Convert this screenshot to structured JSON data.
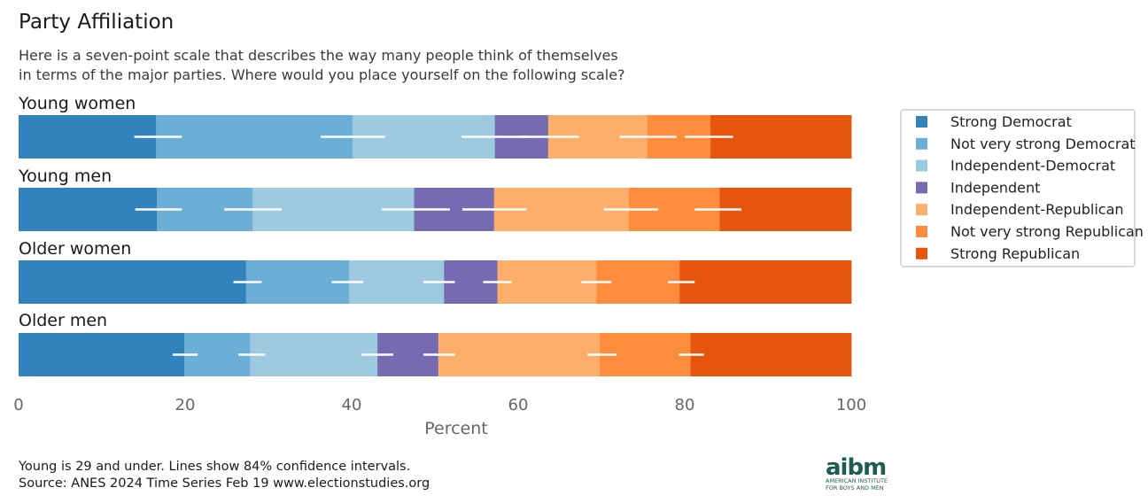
{
  "chart_data": {
    "type": "bar",
    "orientation": "horizontal-stacked",
    "title": "Party Affiliation",
    "subtitle": [
      "Here is a seven-point scale that describes the way many people think of themselves",
      "in terms of the major parties.  Where would you place yourself on the following scale?"
    ],
    "xlabel": "Percent",
    "xlim": [
      0,
      100
    ],
    "xticks": [
      0,
      20,
      40,
      60,
      80,
      100
    ],
    "legend_position": "right",
    "series_names": [
      "Strong Democrat",
      "Not very strong Democrat",
      "Independent-Democrat",
      "Independent",
      "Independent-Republican",
      "Not very strong Republican",
      "Strong Republican"
    ],
    "colors": [
      "#3182bd",
      "#6baed6",
      "#9ecae1",
      "#756bb1",
      "#fdae6b",
      "#fd8d3c",
      "#e6550d"
    ],
    "groups": [
      {
        "label": "Young women",
        "values": [
          16.5,
          23.6,
          17.1,
          6.4,
          11.9,
          7.6,
          16.9
        ],
        "ci": [
          [
            13.9,
            19.6
          ],
          [
            36.3,
            44.0
          ],
          [
            53.2,
            61.0
          ],
          [
            60.2,
            67.3
          ],
          [
            72.2,
            79.0
          ],
          [
            80.0,
            85.8
          ]
        ]
      },
      {
        "label": "Young men",
        "values": [
          16.6,
          11.5,
          19.4,
          9.6,
          16.2,
          10.9,
          15.8
        ],
        "ci": [
          [
            14.0,
            19.6
          ],
          [
            24.7,
            31.6
          ],
          [
            43.6,
            51.8
          ],
          [
            53.3,
            61.0
          ],
          [
            70.3,
            76.8
          ],
          [
            81.2,
            86.8
          ]
        ]
      },
      {
        "label": "Older women",
        "values": [
          27.3,
          12.4,
          11.4,
          6.4,
          11.9,
          10.0,
          20.6
        ],
        "ci": [
          [
            25.8,
            29.2
          ],
          [
            37.6,
            41.4
          ],
          [
            48.6,
            52.4
          ],
          [
            55.8,
            59.2
          ],
          [
            67.6,
            71.2
          ],
          [
            78.0,
            81.2
          ]
        ]
      },
      {
        "label": "Older men",
        "values": [
          19.9,
          7.9,
          15.3,
          7.3,
          19.4,
          10.9,
          19.3
        ],
        "ci": [
          [
            18.5,
            21.5
          ],
          [
            26.4,
            29.6
          ],
          [
            41.2,
            45.0
          ],
          [
            48.6,
            52.4
          ],
          [
            68.3,
            71.8
          ],
          [
            79.3,
            82.3
          ]
        ]
      }
    ]
  },
  "footer": {
    "note": "Young is 29 and under. Lines show 84% confidence intervals.",
    "source": "Source: ANES 2024 Time Series Feb 19 www.electionstudies.org"
  },
  "logo": {
    "main": "aibm",
    "line1": "AMERICAN INSTITUTE",
    "line2": "FOR BOYS AND MEN"
  }
}
